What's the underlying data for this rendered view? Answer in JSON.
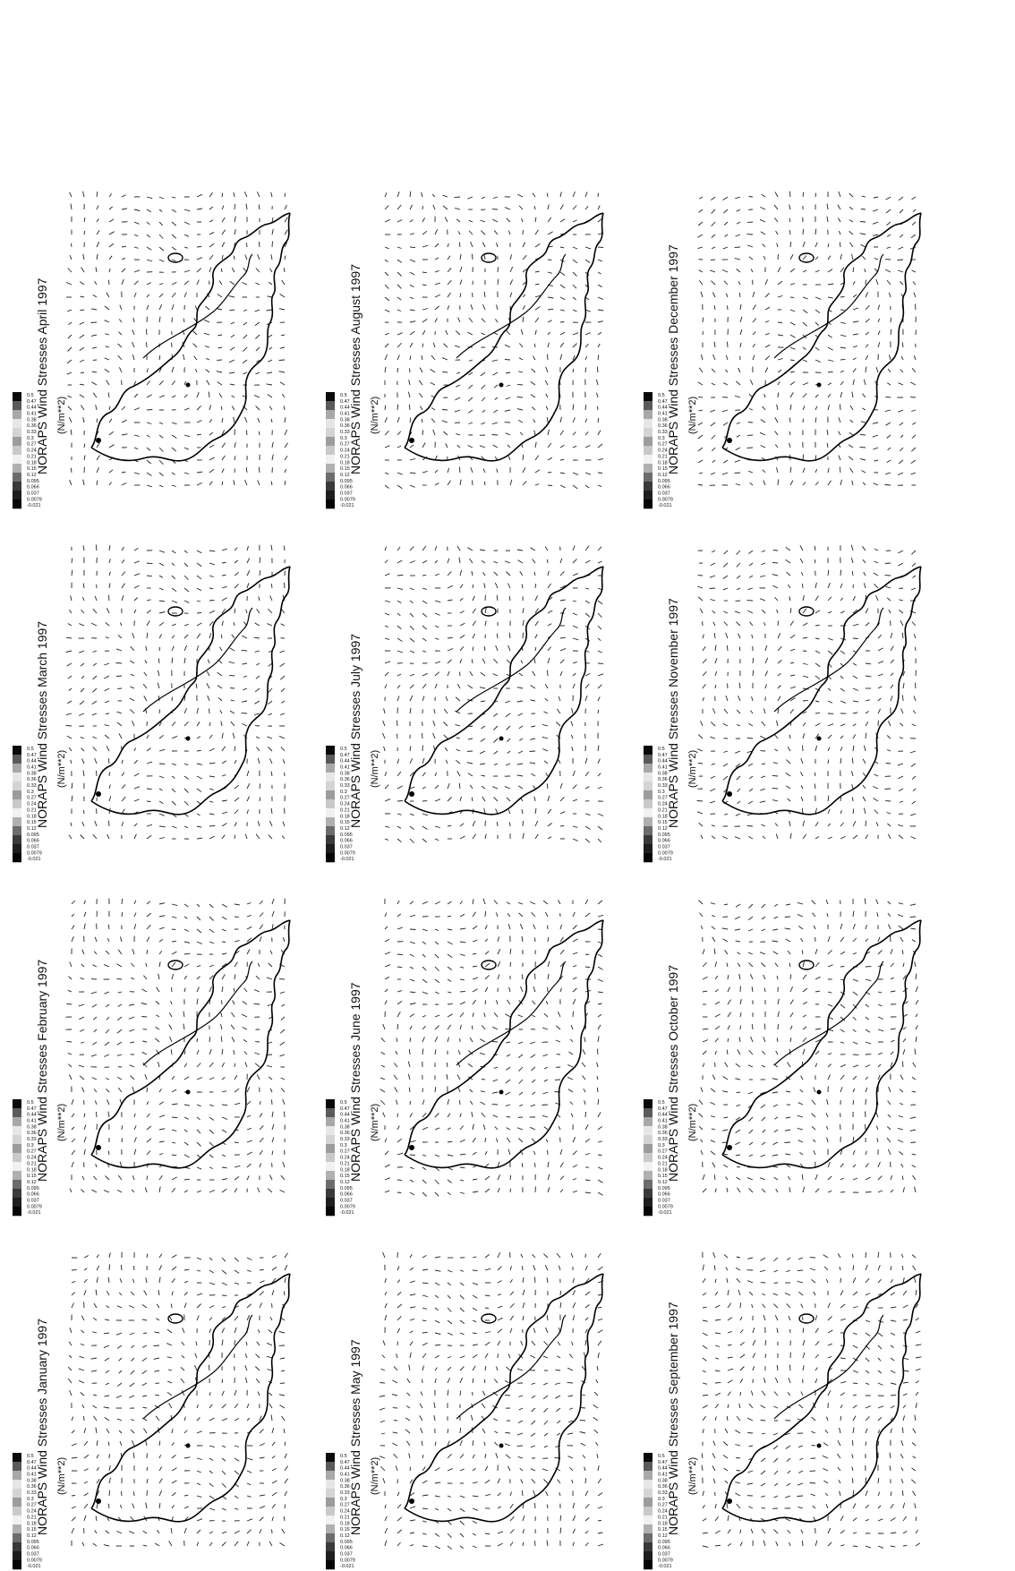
{
  "unit_label": "(N/m**2)",
  "palette": [
    "#0a0a0a",
    "#5a5a5a",
    "#a8a8a8",
    "#e6e6e6",
    "#d4d4d4",
    "#9c9c9c",
    "#c9c9c9",
    "#f1f1f1",
    "#b0b0b0",
    "#6c6c6c",
    "#3a3a3a",
    "#1e1e1e",
    "#050505"
  ],
  "legend_values": [
    "0.5",
    "0.47",
    "0.44",
    "0.41",
    "0.38",
    "0.36",
    "0.33",
    "0.3",
    "0.27",
    "0.24",
    "0.21",
    "0.18",
    "0.15",
    "0.12",
    "0.095",
    "0.066",
    "0.037",
    "0.0079",
    "-0.021"
  ],
  "panels": [
    {
      "title": "NORAPS Wind Stresses January 1997",
      "month": "January"
    },
    {
      "title": "NORAPS Wind Stresses February 1997",
      "month": "February"
    },
    {
      "title": "NORAPS Wind Stresses March 1997",
      "month": "March"
    },
    {
      "title": "NORAPS Wind Stresses April 1997",
      "month": "April"
    },
    {
      "title": "NORAPS Wind Stresses May 1997",
      "month": "May"
    },
    {
      "title": "NORAPS Wind Stresses June 1997",
      "month": "June"
    },
    {
      "title": "NORAPS Wind Stresses July 1997",
      "month": "July"
    },
    {
      "title": "NORAPS Wind Stresses August 1997",
      "month": "August"
    },
    {
      "title": "NORAPS Wind Stresses September 1997",
      "month": "September"
    },
    {
      "title": "NORAPS Wind Stresses October 1997",
      "month": "October"
    },
    {
      "title": "NORAPS Wind Stresses November 1997",
      "month": "November"
    },
    {
      "title": "NORAPS Wind Stresses December 1997",
      "month": "December"
    }
  ]
}
